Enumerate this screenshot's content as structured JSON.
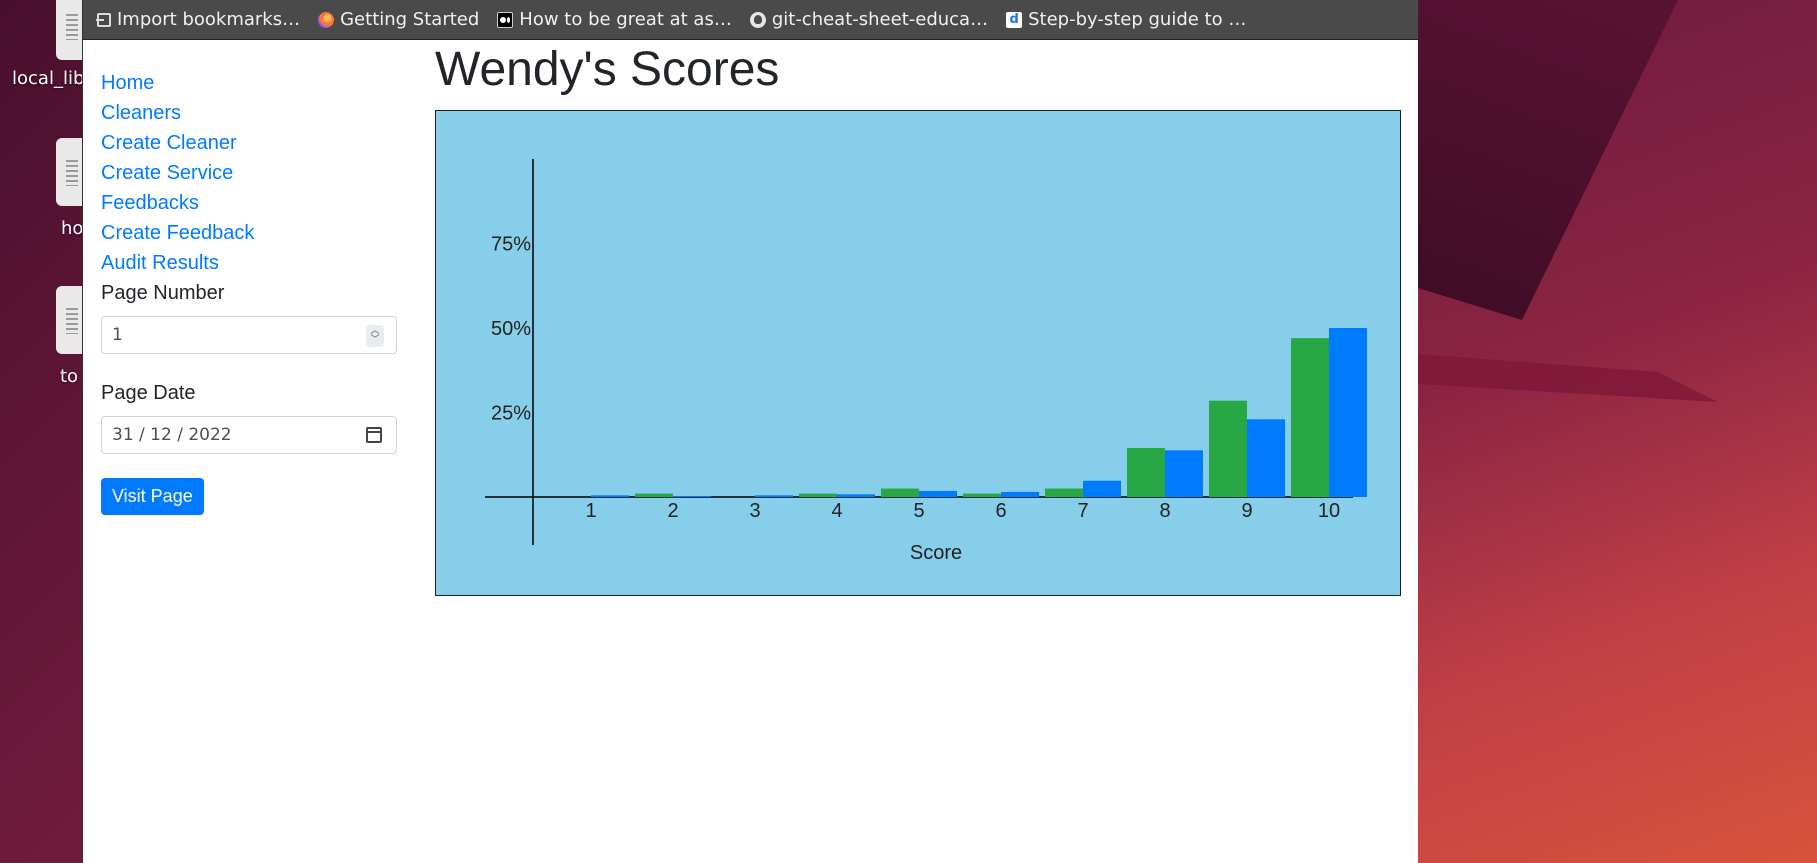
{
  "desktop": {
    "icons": [
      {
        "label": "local_lib"
      },
      {
        "label": "ho"
      },
      {
        "label": "to"
      }
    ]
  },
  "bookmarks": [
    {
      "label": "Import bookmarks…",
      "icon": "import-icon"
    },
    {
      "label": "Getting Started",
      "icon": "firefox-icon"
    },
    {
      "label": "How to be great at as…",
      "icon": "medium-icon"
    },
    {
      "label": "git-cheat-sheet-educa…",
      "icon": "github-icon"
    },
    {
      "label": "Step-by-step guide to …",
      "icon": "d-icon"
    }
  ],
  "sidebar": {
    "links": [
      "Home",
      "Cleaners",
      "Create Cleaner",
      "Create Service",
      "Feedbacks",
      "Create Feedback",
      "Audit Results"
    ],
    "page_number_label": "Page Number",
    "page_number_value": "1",
    "page_date_label": "Page Date",
    "page_date_value": "31 / 12 / 2022",
    "visit_button": "Visit Page"
  },
  "page_title": "Wendy's Scores",
  "colors": {
    "series_green": "#28a745",
    "series_blue": "#007bff",
    "chart_bg": "#87ceeb",
    "link": "#007bff"
  },
  "chart_data": {
    "type": "bar",
    "categories": [
      "1",
      "2",
      "3",
      "4",
      "5",
      "6",
      "7",
      "8",
      "9",
      "10"
    ],
    "series": [
      {
        "values": [
          0,
          1,
          0,
          1,
          2.5,
          1,
          2.5,
          14.5,
          28.5,
          47
        ]
      },
      {
        "values": [
          0.5,
          0.3,
          0.5,
          0.8,
          1.8,
          1.5,
          4.8,
          13.8,
          23,
          50
        ]
      }
    ],
    "xlabel": "Score",
    "ylabel": "",
    "yticks": [
      "25%",
      "50%",
      "75%"
    ],
    "ylim": [
      0,
      100
    ],
    "grid": false,
    "legend": "none"
  }
}
